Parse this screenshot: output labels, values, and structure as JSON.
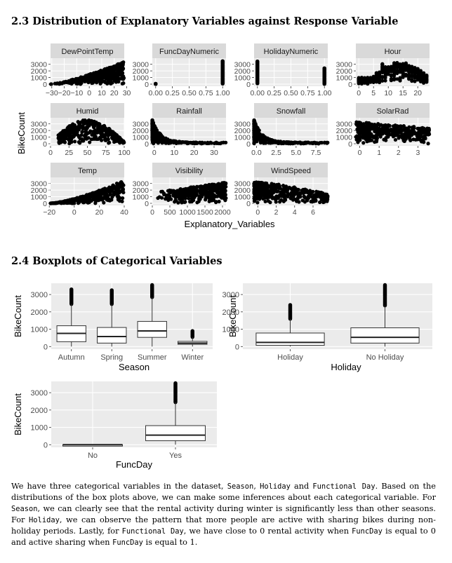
{
  "section_23": {
    "title": "2.3 Distribution of Explanatory Variables against Response Variable"
  },
  "section_24": {
    "title": "2.4 Boxplots of Categorical Variables"
  },
  "chart_data": [
    {
      "type": "scatter",
      "ylabel": "BikeCount",
      "xlabel": "Explanatory_Variables",
      "yticks": [
        0,
        1000,
        2000,
        3000
      ],
      "facets": [
        {
          "name": "DewPointTemp",
          "xlim": [
            -31,
            28
          ],
          "xticks": [
            "−30",
            "−20",
            "−10",
            "0",
            "10",
            "20",
            "30"
          ],
          "tick_values": [
            -30,
            -20,
            -10,
            0,
            10,
            20,
            30
          ],
          "shape": "hump-right"
        },
        {
          "name": "FuncDayNumeric",
          "xlim": [
            -0.05,
            1.05
          ],
          "xticks": [
            "0.00",
            "0.25",
            "0.50",
            "0.75",
            "1.00"
          ],
          "tick_values": [
            0,
            0.25,
            0.5,
            0.75,
            1
          ],
          "shape": "binary"
        },
        {
          "name": "HolidayNumeric",
          "xlim": [
            -0.05,
            1.05
          ],
          "xticks": [
            "0.00",
            "0.25",
            "0.50",
            "0.75",
            "1.00"
          ],
          "tick_values": [
            0,
            0.25,
            0.5,
            0.75,
            1
          ],
          "shape": "binary-holiday"
        },
        {
          "name": "Hour",
          "xlim": [
            -1,
            24
          ],
          "xticks": [
            "0",
            "5",
            "10",
            "15",
            "20"
          ],
          "tick_values": [
            0,
            5,
            10,
            15,
            20
          ],
          "shape": "hour"
        },
        {
          "name": "Humid",
          "xlim": [
            0,
            100
          ],
          "xticks": [
            "0",
            "25",
            "50",
            "75",
            "100"
          ],
          "tick_values": [
            0,
            25,
            50,
            75,
            100
          ],
          "shape": "hump"
        },
        {
          "name": "Rainfall",
          "xlim": [
            -1,
            36
          ],
          "xticks": [
            "0",
            "10",
            "20",
            "30"
          ],
          "tick_values": [
            0,
            10,
            20,
            30
          ],
          "shape": "decay"
        },
        {
          "name": "Snowfall",
          "xlim": [
            -0.3,
            9
          ],
          "xticks": [
            "0.0",
            "2.5",
            "5.0",
            "7.5"
          ],
          "tick_values": [
            0,
            2.5,
            5,
            7.5
          ],
          "shape": "decay"
        },
        {
          "name": "SolarRad",
          "xlim": [
            -0.2,
            3.6
          ],
          "xticks": [
            "0",
            "1",
            "2",
            "3"
          ],
          "tick_values": [
            0,
            1,
            2,
            3
          ],
          "shape": "solar"
        },
        {
          "name": "Temp",
          "xlim": [
            -19,
            40
          ],
          "xticks": [
            "−20",
            "0",
            "20",
            "40"
          ],
          "tick_values": [
            -20,
            0,
            20,
            40
          ],
          "shape": "rise"
        },
        {
          "name": "Visibility",
          "xlim": [
            0,
            2100
          ],
          "xticks": [
            "0",
            "500",
            "1000",
            "1500",
            "2000"
          ],
          "tick_values": [
            0,
            500,
            1000,
            1500,
            2000
          ],
          "shape": "flat"
        },
        {
          "name": "WindSpeed",
          "xlim": [
            -0.4,
            7.6
          ],
          "xticks": [
            "0",
            "2",
            "4",
            "6"
          ],
          "tick_values": [
            0,
            2,
            4,
            6
          ],
          "shape": "wind"
        }
      ]
    },
    {
      "type": "boxplot",
      "xlabel": "Season",
      "ylabel": "BikeCount",
      "ylim": [
        -150,
        3650
      ],
      "yticks": [
        0,
        1000,
        2000,
        3000
      ],
      "categories": [
        "Autumn",
        "Spring",
        "Summer",
        "Winter"
      ],
      "boxes": [
        {
          "q1": 280,
          "median": 760,
          "q3": 1200,
          "low": 0,
          "high": 2450,
          "outliers_to": 3300
        },
        {
          "q1": 200,
          "median": 580,
          "q3": 1100,
          "low": 0,
          "high": 2450,
          "outliers_to": 3250
        },
        {
          "q1": 530,
          "median": 900,
          "q3": 1450,
          "low": 0,
          "high": 2850,
          "outliers_to": 3550
        },
        {
          "q1": 130,
          "median": 200,
          "q3": 300,
          "low": 0,
          "high": 550,
          "outliers_to": 900
        }
      ]
    },
    {
      "type": "boxplot",
      "xlabel": "Holiday",
      "ylabel": "BikeCount",
      "ylim": [
        -150,
        3650
      ],
      "yticks": [
        0,
        1000,
        2000,
        3000
      ],
      "categories": [
        "Holiday",
        "No Holiday"
      ],
      "boxes": [
        {
          "q1": 70,
          "median": 240,
          "q3": 780,
          "low": 0,
          "high": 1600,
          "outliers_to": 2400
        },
        {
          "q1": 200,
          "median": 530,
          "q3": 1080,
          "low": 0,
          "high": 2370,
          "outliers_to": 3550
        }
      ]
    },
    {
      "type": "boxplot",
      "xlabel": "FuncDay",
      "ylabel": "BikeCount",
      "ylim": [
        -150,
        3650
      ],
      "yticks": [
        0,
        1000,
        2000,
        3000
      ],
      "categories": [
        "No",
        "Yes"
      ],
      "boxes": [
        {
          "q1": 0,
          "median": 0,
          "q3": 0,
          "low": 0,
          "high": 0,
          "outliers_to": 0
        },
        {
          "q1": 230,
          "median": 550,
          "q3": 1100,
          "low": 0,
          "high": 2450,
          "outliers_to": 3550
        }
      ]
    }
  ],
  "paragraph": [
    {
      "t": "We have three categorical variables in the dataset, "
    },
    {
      "c": "Season"
    },
    {
      "t": ", "
    },
    {
      "c": "Holiday"
    },
    {
      "t": " and "
    },
    {
      "c": "Functional Day"
    },
    {
      "t": ". Based on the distributions of the box plots above, we can make some inferences about each categorical variable. For "
    },
    {
      "c": "Season"
    },
    {
      "t": ", we can clearly see that the rental activity during winter is significantly less than other seasons. For "
    },
    {
      "c": "Holiday"
    },
    {
      "t": ", we can observe the pattern that more people are active with sharing bikes during non-holiday periods. Lastly, for "
    },
    {
      "c": "Functional Day"
    },
    {
      "t": ", we have close to 0 rental activity when "
    },
    {
      "c": "FuncDay"
    },
    {
      "t": " is equal to 0 and active sharing when "
    },
    {
      "c": "FuncDay"
    },
    {
      "t": " is equal to 1."
    }
  ]
}
